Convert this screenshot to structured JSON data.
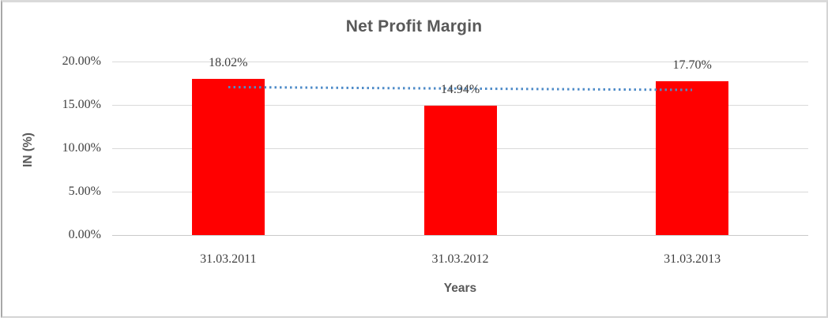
{
  "chart_data": {
    "type": "bar",
    "title": "Net Profit Margin",
    "categories": [
      "31.03.2011",
      "31.03.2012",
      "31.03.2013"
    ],
    "values": [
      18.02,
      14.94,
      17.7
    ],
    "data_labels": [
      "18.02%",
      "14.94%",
      "17.70%"
    ],
    "xlabel": "Years",
    "ylabel": "IN (%)",
    "ylim": [
      0,
      20
    ],
    "yticks": [
      {
        "value": 0,
        "label": "0.00%"
      },
      {
        "value": 5,
        "label": "5.00%"
      },
      {
        "value": 10,
        "label": "10.00%"
      },
      {
        "value": 15,
        "label": "15.00%"
      },
      {
        "value": 20,
        "label": "20.00%"
      }
    ],
    "grid": true,
    "legend": false,
    "trendline": {
      "style": "dotted",
      "start_value": 17.05,
      "end_value": 16.73
    },
    "colors": {
      "bar": "#ff0000",
      "trend": "#4e8bc8",
      "gridline": "#d9d9d9",
      "axis_line": "#c9c9c9",
      "title_text": "#595959",
      "label_text": "#404040"
    }
  }
}
